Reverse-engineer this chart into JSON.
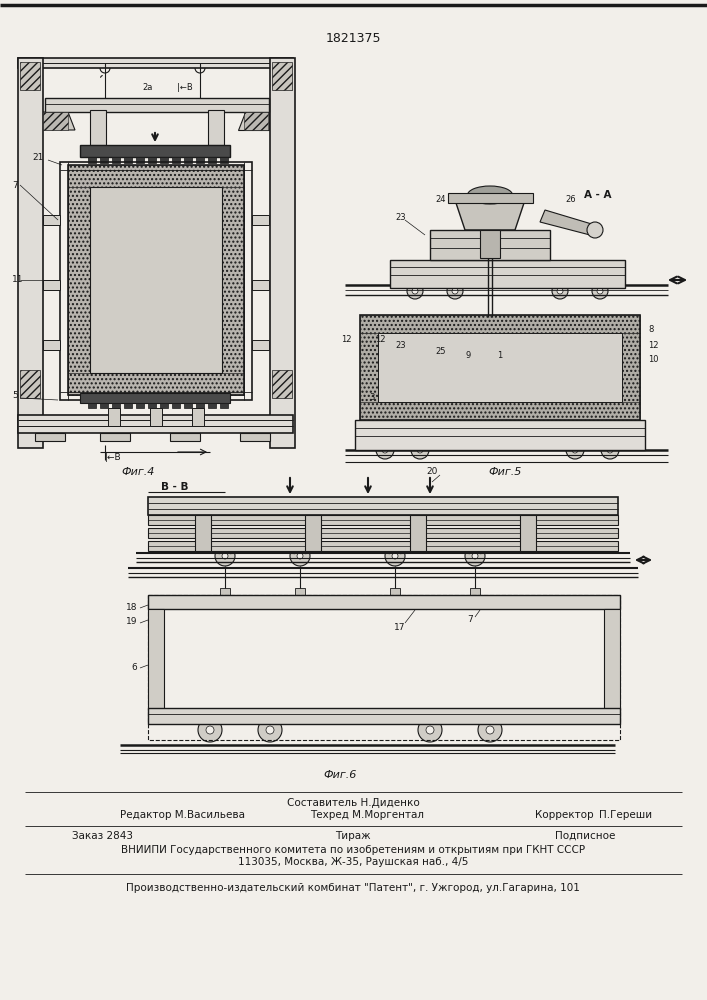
{
  "patent_number": "1821375",
  "fig4_label": "Фиг.4",
  "fig5_label": "Фиг.5",
  "fig6_label": "Фиг.6",
  "section_aa": "A - A",
  "section_bb": "B - B",
  "sestavitel": "Составитель Н.Диденко",
  "redaktor": "Редактор М.Васильева",
  "tehred": "Техред М.Моргентал",
  "korrektor": "Корректор  П.Гереши",
  "zakaz": "Заказ 2843",
  "tirazh": "Тираж",
  "podpisnoe": "Подписное",
  "vniip1": "ВНИИПИ Государственного комитета по изобретениям и открытиям при ГКНТ СССР",
  "vniip2": "113035, Москва, Ж-35, Раушская наб., 4/5",
  "proizv": "Производственно-издательский комбинат \"Патент\", г. Ужгород, ул.Гагарина, 101",
  "bg_color": "#f2efea",
  "line_color": "#1a1a1a",
  "text_color": "#1a1a1a"
}
